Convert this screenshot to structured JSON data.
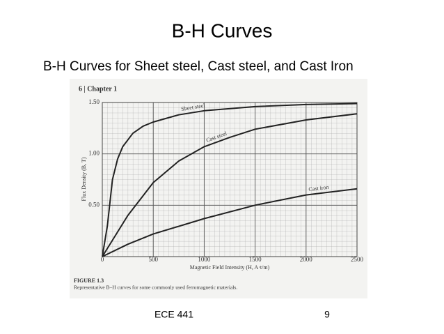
{
  "slide": {
    "title": "B-H Curves",
    "subtitle": "B-H Curves for Sheet steel, Cast steel, and Cast Iron",
    "footer_left": "ECE 441",
    "page_number": "9"
  },
  "book": {
    "chapter_header": "6 | Chapter 1",
    "figure_label": "FIGURE 1.3",
    "figure_caption": "Representative B–H curves for some commonly used ferromagnetic materials."
  },
  "chart_data": {
    "type": "line",
    "x_label": "Magnetic Field Intensity (H, A·t/m)",
    "y_label": "Flux Density (B, T)",
    "xlim": [
      0,
      2500
    ],
    "ylim": [
      0,
      1.5
    ],
    "xticks": [
      0,
      500,
      1000,
      1500,
      2000,
      2500
    ],
    "yticks": [
      {
        "value": 0.5,
        "label": "0.50"
      },
      {
        "value": 1.0,
        "label": "1.00"
      },
      {
        "value": 1.5,
        "label": "1.50"
      }
    ],
    "grid": true,
    "series": [
      {
        "name": "Sheet steel",
        "color": "#222222",
        "x": [
          0,
          50,
          100,
          150,
          200,
          300,
          400,
          500,
          750,
          1000,
          1500,
          2000,
          2500
        ],
        "values": [
          0,
          0.3,
          0.75,
          0.95,
          1.07,
          1.2,
          1.27,
          1.31,
          1.38,
          1.42,
          1.46,
          1.48,
          1.49
        ]
      },
      {
        "name": "Cast steel",
        "color": "#222222",
        "x": [
          0,
          250,
          500,
          750,
          1000,
          1250,
          1500,
          2000,
          2500
        ],
        "values": [
          0,
          0.4,
          0.72,
          0.93,
          1.07,
          1.16,
          1.24,
          1.33,
          1.39
        ]
      },
      {
        "name": "Cast iron",
        "color": "#222222",
        "x": [
          0,
          250,
          500,
          1000,
          1500,
          2000,
          2500
        ],
        "values": [
          0,
          0.12,
          0.22,
          0.37,
          0.5,
          0.6,
          0.66
        ]
      }
    ]
  }
}
